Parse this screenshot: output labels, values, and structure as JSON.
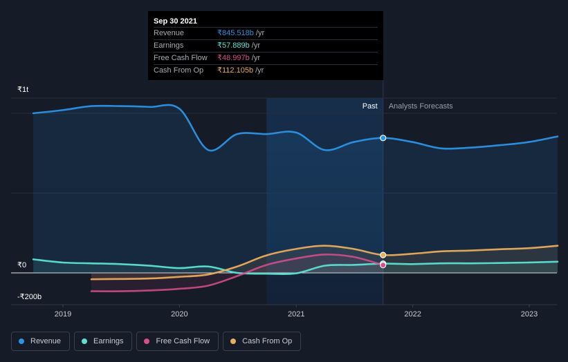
{
  "chart_data": {
    "type": "line",
    "currency": "₹",
    "y_tick_labels": [
      "₹1t",
      "₹0",
      "-₹200b"
    ],
    "x_tick_labels": [
      "2019",
      "2020",
      "2021",
      "2022",
      "2023"
    ],
    "ylim": [
      -200,
      1100
    ],
    "section_labels": {
      "past": "Past",
      "forecast": "Analysts Forecasts"
    },
    "highlight_date": "Sep 30 2021",
    "series": [
      {
        "name": "Revenue",
        "key": "revenue",
        "color": "#2b94e5",
        "points": [
          [
            "2018-09-30",
            1000
          ],
          [
            "2018-12-31",
            1020
          ],
          [
            "2019-03-31",
            1045
          ],
          [
            "2019-06-30",
            1045
          ],
          [
            "2019-09-30",
            1040
          ],
          [
            "2019-12-31",
            1030
          ],
          [
            "2020-03-31",
            770
          ],
          [
            "2020-06-30",
            870
          ],
          [
            "2020-09-30",
            870
          ],
          [
            "2020-12-31",
            880
          ],
          [
            "2021-03-31",
            770
          ],
          [
            "2021-06-30",
            820
          ],
          [
            "2021-09-30",
            845.518
          ],
          [
            "2021-12-31",
            820
          ],
          [
            "2022-03-31",
            780
          ],
          [
            "2022-06-30",
            785
          ],
          [
            "2022-09-30",
            800
          ],
          [
            "2022-12-31",
            820
          ],
          [
            "2023-03-31",
            855
          ]
        ]
      },
      {
        "name": "Earnings",
        "key": "earnings",
        "color": "#5ce1d2",
        "points": [
          [
            "2018-09-30",
            85
          ],
          [
            "2018-12-31",
            65
          ],
          [
            "2019-03-31",
            60
          ],
          [
            "2019-06-30",
            55
          ],
          [
            "2019-09-30",
            45
          ],
          [
            "2019-12-31",
            30
          ],
          [
            "2020-03-31",
            40
          ],
          [
            "2020-06-30",
            0
          ],
          [
            "2020-09-30",
            -5
          ],
          [
            "2020-12-31",
            -3
          ],
          [
            "2021-03-31",
            45
          ],
          [
            "2021-06-30",
            50
          ],
          [
            "2021-09-30",
            57.889
          ],
          [
            "2021-12-31",
            55
          ],
          [
            "2022-03-31",
            60
          ],
          [
            "2022-06-30",
            60
          ],
          [
            "2022-09-30",
            62
          ],
          [
            "2022-12-31",
            65
          ],
          [
            "2023-03-31",
            70
          ]
        ]
      },
      {
        "name": "Free Cash Flow",
        "key": "fcf",
        "color": "#d94f8e",
        "points": [
          [
            "2019-03-31",
            -115
          ],
          [
            "2019-06-30",
            -115
          ],
          [
            "2019-09-30",
            -110
          ],
          [
            "2019-12-31",
            -100
          ],
          [
            "2020-03-31",
            -80
          ],
          [
            "2020-06-30",
            -20
          ],
          [
            "2020-09-30",
            50
          ],
          [
            "2020-12-31",
            90
          ],
          [
            "2021-03-31",
            115
          ],
          [
            "2021-06-30",
            100
          ],
          [
            "2021-09-30",
            48.997
          ]
        ]
      },
      {
        "name": "Cash From Op",
        "key": "cfo",
        "color": "#e8ad5d",
        "points": [
          [
            "2019-03-31",
            -40
          ],
          [
            "2019-06-30",
            -38
          ],
          [
            "2019-09-30",
            -35
          ],
          [
            "2019-12-31",
            -25
          ],
          [
            "2020-03-31",
            -10
          ],
          [
            "2020-06-30",
            40
          ],
          [
            "2020-09-30",
            110
          ],
          [
            "2020-12-31",
            150
          ],
          [
            "2021-03-31",
            170
          ],
          [
            "2021-06-30",
            150
          ],
          [
            "2021-09-30",
            112.105
          ],
          [
            "2021-12-31",
            120
          ],
          [
            "2022-03-31",
            135
          ],
          [
            "2022-06-30",
            140
          ],
          [
            "2022-09-30",
            148
          ],
          [
            "2022-12-31",
            155
          ],
          [
            "2023-03-31",
            170
          ]
        ]
      }
    ]
  },
  "tooltip": {
    "date": "Sep 30 2021",
    "unit": "/yr",
    "rows": [
      {
        "label": "Revenue",
        "value": "₹845.518b",
        "color": "#2b94e5"
      },
      {
        "label": "Earnings",
        "value": "₹57.889b",
        "color": "#5ce1d2"
      },
      {
        "label": "Free Cash Flow",
        "value": "₹48.997b",
        "color": "#d94f8e"
      },
      {
        "label": "Cash From Op",
        "value": "₹112.105b",
        "color": "#e8ad5d"
      }
    ]
  },
  "legend": [
    {
      "label": "Revenue",
      "color": "#2b94e5"
    },
    {
      "label": "Earnings",
      "color": "#5ce1d2"
    },
    {
      "label": "Free Cash Flow",
      "color": "#d94f8e"
    },
    {
      "label": "Cash From Op",
      "color": "#e8ad5d"
    }
  ]
}
